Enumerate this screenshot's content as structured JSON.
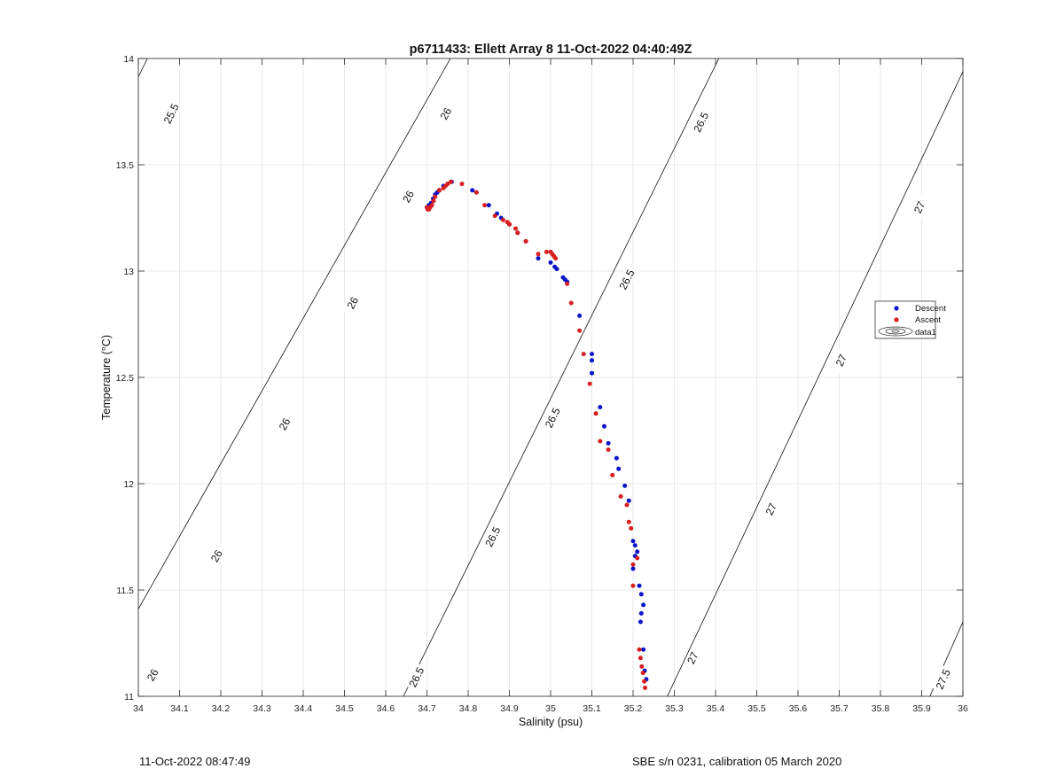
{
  "footer": {
    "timestamp": "11-Oct-2022 08:47:49",
    "instrument": "SBE s/n 0231, calibration 05 March 2020"
  },
  "colors": {
    "descent": "#0a14c8",
    "ascent": "#d81e1e",
    "contour": "#000000",
    "grid": "#e3e3e3",
    "axis": "#262626"
  },
  "chart_data": {
    "type": "scatter",
    "title": "p6711433: Ellett Array 8 11-Oct-2022 04:40:49Z",
    "xlabel": "Salinity (psu)",
    "ylabel": "Temperature (°C)",
    "xlim": [
      34,
      36
    ],
    "ylim": [
      11,
      14
    ],
    "xticks": [
      34,
      34.1,
      34.2,
      34.3,
      34.4,
      34.5,
      34.6,
      34.7,
      34.8,
      34.9,
      35,
      35.1,
      35.2,
      35.3,
      35.4,
      35.5,
      35.6,
      35.7,
      35.8,
      35.9,
      36
    ],
    "yticks": [
      11,
      11.5,
      12,
      12.5,
      13,
      13.5,
      14
    ],
    "xtick_labels": [
      "34",
      "34.1",
      "34.2",
      "34.3",
      "34.4",
      "34.5",
      "34.6",
      "34.7",
      "34.8",
      "34.9",
      "35",
      "35.1",
      "35.2",
      "35.3",
      "35.4",
      "35.5",
      "35.6",
      "35.7",
      "35.8",
      "35.9",
      "36"
    ],
    "ytick_labels": [
      "11",
      "11.5",
      "12",
      "12.5",
      "13",
      "13.5",
      "14"
    ],
    "grid": true,
    "legend": {
      "position": "right",
      "entries": [
        "Descent",
        "Ascent",
        "data1"
      ]
    },
    "series": [
      {
        "name": "Descent",
        "marker": "dot",
        "x": [
          34.7,
          34.705,
          34.71,
          34.715,
          34.72,
          34.725,
          34.73,
          34.74,
          34.75,
          34.76,
          34.81,
          34.82,
          34.85,
          34.87,
          34.88,
          34.9,
          34.92,
          34.94,
          34.97,
          35.0,
          35.01,
          35.015,
          35.03,
          35.035,
          35.04,
          35.07,
          35.1,
          35.1,
          35.1,
          35.12,
          35.13,
          35.14,
          35.16,
          35.165,
          35.18,
          35.19,
          35.2,
          35.205,
          35.21,
          35.205,
          35.2,
          35.215,
          35.22,
          35.225,
          35.22,
          35.218,
          35.225,
          35.228,
          35.232
        ],
        "y": [
          13.3,
          13.31,
          13.32,
          13.34,
          13.36,
          13.37,
          13.38,
          13.4,
          13.41,
          13.42,
          13.38,
          13.37,
          13.31,
          13.27,
          13.25,
          13.22,
          13.18,
          13.14,
          13.06,
          13.04,
          13.02,
          13.01,
          12.97,
          12.96,
          12.95,
          12.79,
          12.61,
          12.58,
          12.52,
          12.36,
          12.27,
          12.19,
          12.12,
          12.07,
          11.99,
          11.92,
          11.73,
          11.71,
          11.68,
          11.66,
          11.6,
          11.52,
          11.48,
          11.43,
          11.39,
          11.35,
          11.22,
          11.12,
          11.08
        ]
      },
      {
        "name": "Ascent",
        "marker": "dot",
        "x": [
          34.7,
          34.702,
          34.705,
          34.708,
          34.712,
          34.716,
          34.72,
          34.73,
          34.74,
          34.745,
          34.75,
          34.758,
          34.785,
          34.82,
          34.84,
          34.865,
          34.885,
          34.895,
          34.9,
          34.915,
          34.92,
          34.94,
          34.97,
          34.99,
          35.0,
          35.004,
          35.008,
          35.012,
          35.04,
          35.05,
          35.07,
          35.08,
          35.095,
          35.11,
          35.12,
          35.14,
          35.15,
          35.17,
          35.185,
          35.19,
          35.195,
          35.2,
          35.2,
          35.21,
          35.215,
          35.218,
          35.221,
          35.224,
          35.227,
          35.229
        ],
        "y": [
          13.3,
          13.29,
          13.29,
          13.3,
          13.31,
          13.33,
          13.35,
          13.38,
          13.39,
          13.4,
          13.41,
          13.42,
          13.41,
          13.37,
          13.31,
          13.26,
          13.24,
          13.23,
          13.22,
          13.2,
          13.18,
          13.14,
          13.08,
          13.09,
          13.09,
          13.08,
          13.07,
          13.06,
          12.94,
          12.85,
          12.72,
          12.61,
          12.47,
          12.33,
          12.2,
          12.16,
          12.04,
          11.94,
          11.9,
          11.82,
          11.79,
          11.62,
          11.52,
          11.65,
          11.22,
          11.18,
          11.14,
          11.11,
          11.07,
          11.04
        ]
      }
    ],
    "isopycnals": [
      {
        "label": "25.5"
      },
      {
        "label": "26"
      },
      {
        "label": "26.5"
      },
      {
        "label": "27"
      },
      {
        "label": "27.5"
      }
    ]
  }
}
